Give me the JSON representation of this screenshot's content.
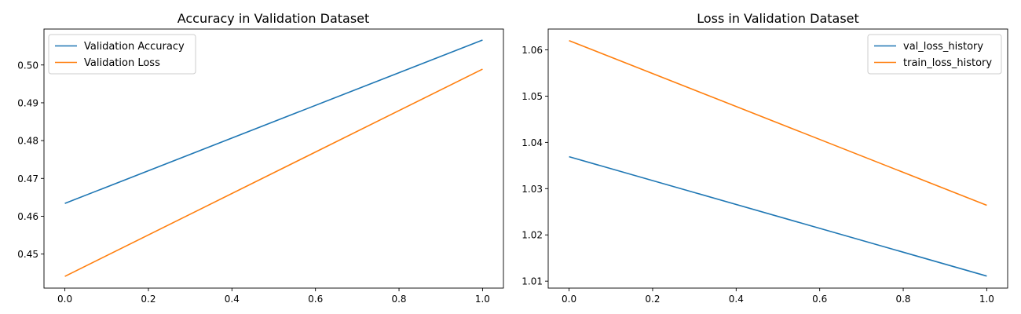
{
  "chart_data": [
    {
      "type": "line",
      "title": "Accuracy in Validation Dataset",
      "xlabel": "",
      "ylabel": "",
      "xlim": [
        -0.05,
        1.05
      ],
      "ylim": [
        0.441,
        0.5095
      ],
      "xticks": [
        0.0,
        0.2,
        0.4,
        0.6,
        0.8,
        1.0
      ],
      "xtick_labels": [
        "0.0",
        "0.2",
        "0.4",
        "0.6",
        "0.8",
        "1.0"
      ],
      "yticks": [
        0.45,
        0.46,
        0.47,
        0.48,
        0.49,
        0.5
      ],
      "ytick_labels": [
        "0.45",
        "0.46",
        "0.47",
        "0.48",
        "0.49",
        "0.50"
      ],
      "grid": false,
      "legend_position": "top-left",
      "series": [
        {
          "name": "Validation Accuracy",
          "color": "#1f77b4",
          "x": [
            0,
            1
          ],
          "y": [
            0.4634,
            0.5066
          ]
        },
        {
          "name": "Validation Loss",
          "color": "#ff7f0e",
          "x": [
            0,
            1
          ],
          "y": [
            0.4441,
            0.4989
          ]
        }
      ]
    },
    {
      "type": "line",
      "title": "Loss in Validation Dataset",
      "xlabel": "",
      "ylabel": "",
      "xlim": [
        -0.05,
        1.05
      ],
      "ylim": [
        1.0085,
        1.0645
      ],
      "xticks": [
        0.0,
        0.2,
        0.4,
        0.6,
        0.8,
        1.0
      ],
      "xtick_labels": [
        "0.0",
        "0.2",
        "0.4",
        "0.6",
        "0.8",
        "1.0"
      ],
      "yticks": [
        1.01,
        1.02,
        1.03,
        1.04,
        1.05,
        1.06
      ],
      "ytick_labels": [
        "1.01",
        "1.02",
        "1.03",
        "1.04",
        "1.05",
        "1.06"
      ],
      "grid": false,
      "legend_position": "top-right",
      "series": [
        {
          "name": "val_loss_history",
          "color": "#1f77b4",
          "x": [
            0,
            1
          ],
          "y": [
            1.0369,
            1.0111
          ]
        },
        {
          "name": "train_loss_history",
          "color": "#ff7f0e",
          "x": [
            0,
            1
          ],
          "y": [
            1.062,
            1.0264
          ]
        }
      ]
    }
  ]
}
